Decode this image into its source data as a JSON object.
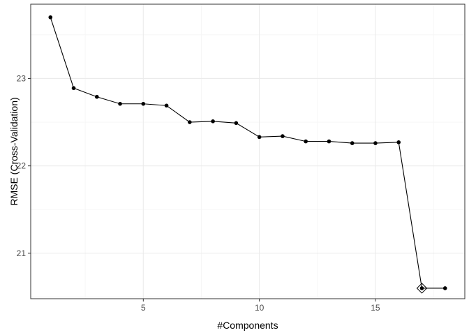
{
  "chart_data": {
    "type": "line",
    "title": "",
    "xlabel": "#Components",
    "ylabel": "RMSE (Cross-Validation)",
    "xlim": [
      0.15,
      18.85
    ],
    "ylim": [
      20.48,
      23.85
    ],
    "x_ticks": [
      5,
      10,
      15
    ],
    "y_ticks": [
      21,
      22,
      23
    ],
    "grid": true,
    "series": [
      {
        "x": [
          1,
          2,
          3,
          4,
          5,
          6,
          7,
          8,
          9,
          10,
          11,
          12,
          13,
          14,
          15,
          16,
          17,
          18
        ],
        "values": [
          23.7,
          22.89,
          22.79,
          22.71,
          22.71,
          22.69,
          22.5,
          22.51,
          22.49,
          22.33,
          22.34,
          22.28,
          22.28,
          22.26,
          22.26,
          22.27,
          20.6,
          20.6
        ]
      }
    ],
    "highlight": {
      "x": 17,
      "y": 20.6,
      "marker": "diamond"
    },
    "colors": {
      "line": "#000000",
      "grid_major": "#ebebeb",
      "grid_minor": "#f5f5f5",
      "panel_border": "#333333"
    }
  }
}
